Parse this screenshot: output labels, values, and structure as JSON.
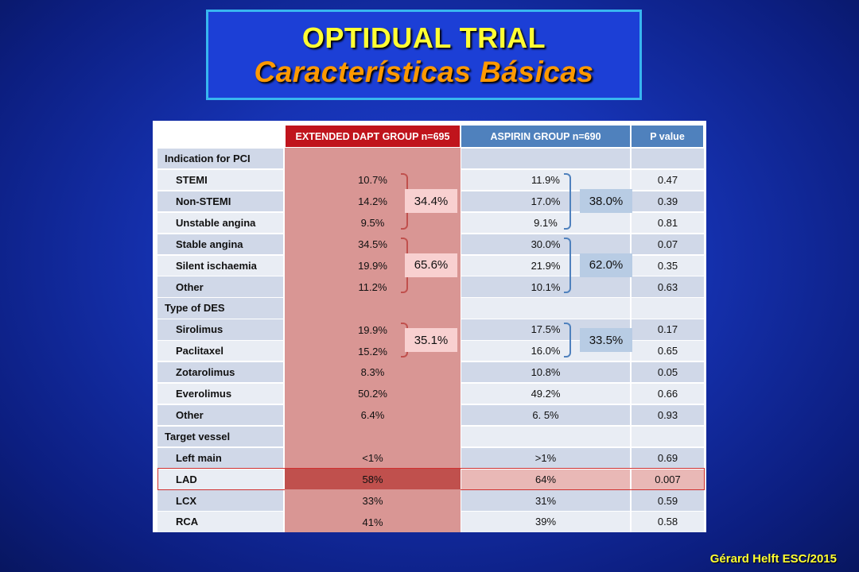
{
  "title": {
    "line1": "OPTIDUAL TRIAL",
    "line2": "Características Básicas"
  },
  "table": {
    "headers": [
      "EXTENDED DAPT GROUP n=695",
      "ASPIRIN GROUP n=690",
      "P value"
    ],
    "rows": [
      {
        "label": "Indication for PCI",
        "section": true,
        "ext": "",
        "asp": "",
        "p": ""
      },
      {
        "label": "STEMI",
        "ext": "10.7%",
        "asp": "11.9%",
        "p": "0.47"
      },
      {
        "label": "Non-STEMI",
        "ext": "14.2%",
        "asp": "17.0%",
        "p": "0.39"
      },
      {
        "label": "Unstable angina",
        "ext": "9.5%",
        "asp": "9.1%",
        "p": "0.81"
      },
      {
        "label": "Stable angina",
        "ext": "34.5%",
        "asp": "30.0%",
        "p": "0.07"
      },
      {
        "label": "Silent ischaemia",
        "ext": "19.9%",
        "asp": "21.9%",
        "p": "0.35"
      },
      {
        "label": "Other",
        "ext": "11.2%",
        "asp": "10.1%",
        "p": "0.63"
      },
      {
        "label": "Type of DES",
        "section": true,
        "ext": "",
        "asp": "",
        "p": ""
      },
      {
        "label": "Sirolimus",
        "ext": "19.9%",
        "asp": "17.5%",
        "p": "0.17"
      },
      {
        "label": "Paclitaxel",
        "ext": "15.2%",
        "asp": "16.0%",
        "p": "0.65"
      },
      {
        "label": "Zotarolimus",
        "ext": "8.3%",
        "asp": "10.8%",
        "p": "0.05"
      },
      {
        "label": "Everolimus",
        "ext": "50.2%",
        "asp": "49.2%",
        "p": "0.66"
      },
      {
        "label": "Other",
        "ext": "6.4%",
        "asp": "6. 5%",
        "p": "0.93"
      },
      {
        "label": "Target vessel",
        "section": true,
        "ext": "",
        "asp": "",
        "p": ""
      },
      {
        "label": "Left main",
        "ext": "<1%",
        "asp": ">1%",
        "p": "0.69"
      },
      {
        "label": "LAD",
        "ext": "58%",
        "asp": "64%",
        "p": "0.007",
        "highlight": true
      },
      {
        "label": "LCX",
        "ext": "33%",
        "asp": "31%",
        "p": "0.59"
      },
      {
        "label": "RCA",
        "ext": "41%",
        "asp": "39%",
        "p": "0.58"
      }
    ],
    "ext_sums": [
      {
        "first": 1,
        "last": 3,
        "label": "34.4%"
      },
      {
        "first": 4,
        "last": 6,
        "label": "65.6%"
      },
      {
        "first": 8,
        "last": 9,
        "label": "35.1%"
      }
    ],
    "asp_sums": [
      {
        "first": 1,
        "last": 3,
        "label": "38.0%"
      },
      {
        "first": 4,
        "last": 6,
        "label": "62.0%"
      },
      {
        "first": 8,
        "last": 9,
        "label": "33.5%"
      }
    ]
  },
  "colors": {
    "ext_header": "#c0141c",
    "asp_header": "#4f81bd",
    "ext_column": "#d99694",
    "ext_highlight": "#c0504d",
    "row_light": "#e9edf4",
    "row_dark": "#d0d8e8",
    "ext_bracket": "#c0504d",
    "asp_bracket": "#4f81bd",
    "ext_sum_bg": "#f8d0d0",
    "asp_sum_bg": "#b8cce4"
  },
  "footer": "Gérard Helft ESC/2015"
}
